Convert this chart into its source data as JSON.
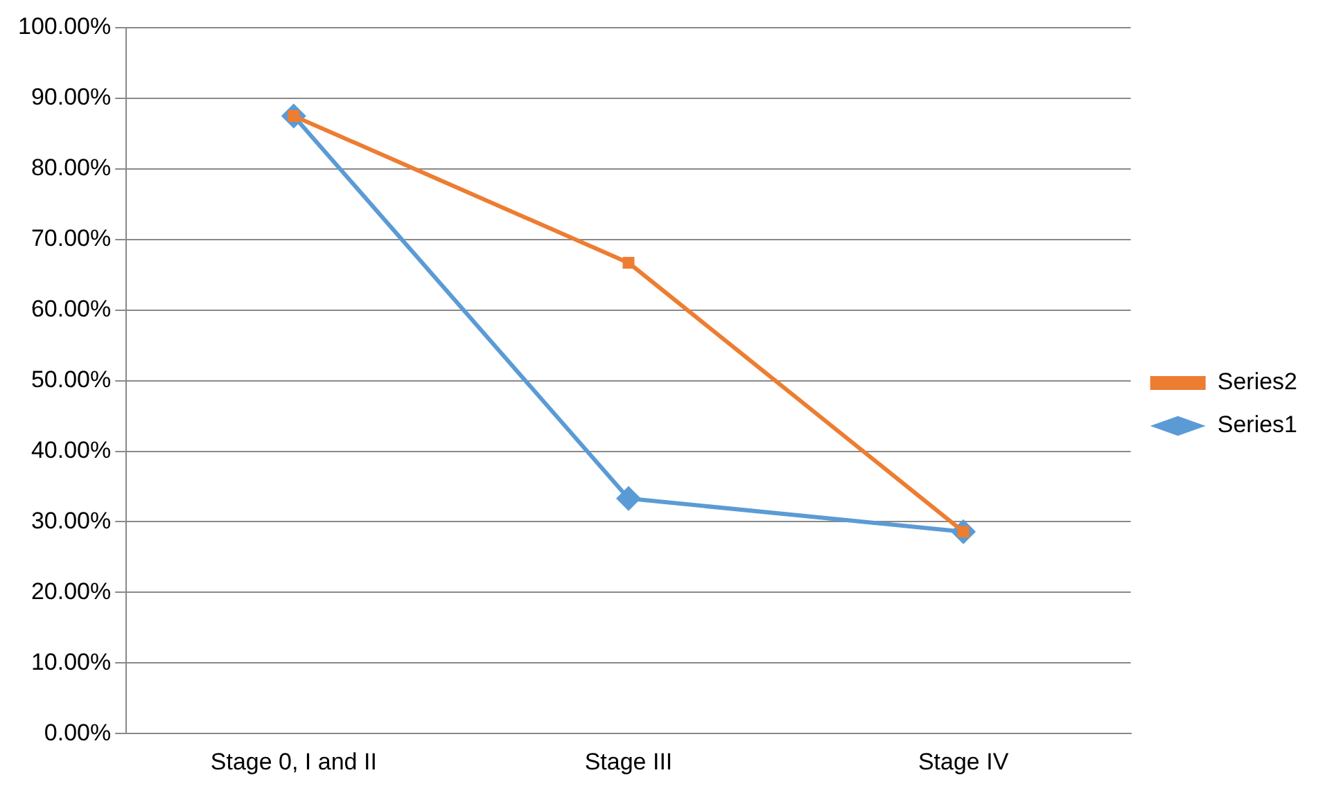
{
  "chart_data": {
    "type": "line",
    "categories": [
      "Stage 0, I and II",
      "Stage III",
      "Stage IV"
    ],
    "series": [
      {
        "name": "Series1",
        "color": "#5b9bd5",
        "marker": "diamond",
        "values": [
          87.5,
          33.3,
          28.6
        ]
      },
      {
        "name": "Series2",
        "color": "#ed7d31",
        "marker": "square",
        "values": [
          87.5,
          66.7,
          28.6
        ]
      }
    ],
    "ylim": [
      0,
      100
    ],
    "yticks": [
      {
        "value": 0,
        "label": "0.00%"
      },
      {
        "value": 10,
        "label": "10.00%"
      },
      {
        "value": 20,
        "label": "20.00%"
      },
      {
        "value": 30,
        "label": "30.00%"
      },
      {
        "value": 40,
        "label": "40.00%"
      },
      {
        "value": 50,
        "label": "50.00%"
      },
      {
        "value": 60,
        "label": "60.00%"
      },
      {
        "value": 70,
        "label": "70.00%"
      },
      {
        "value": 80,
        "label": "80.00%"
      },
      {
        "value": 90,
        "label": "90.00%"
      },
      {
        "value": 100,
        "label": "100.00%"
      }
    ],
    "grid": "y",
    "legend": "right",
    "line_style": "solid"
  }
}
